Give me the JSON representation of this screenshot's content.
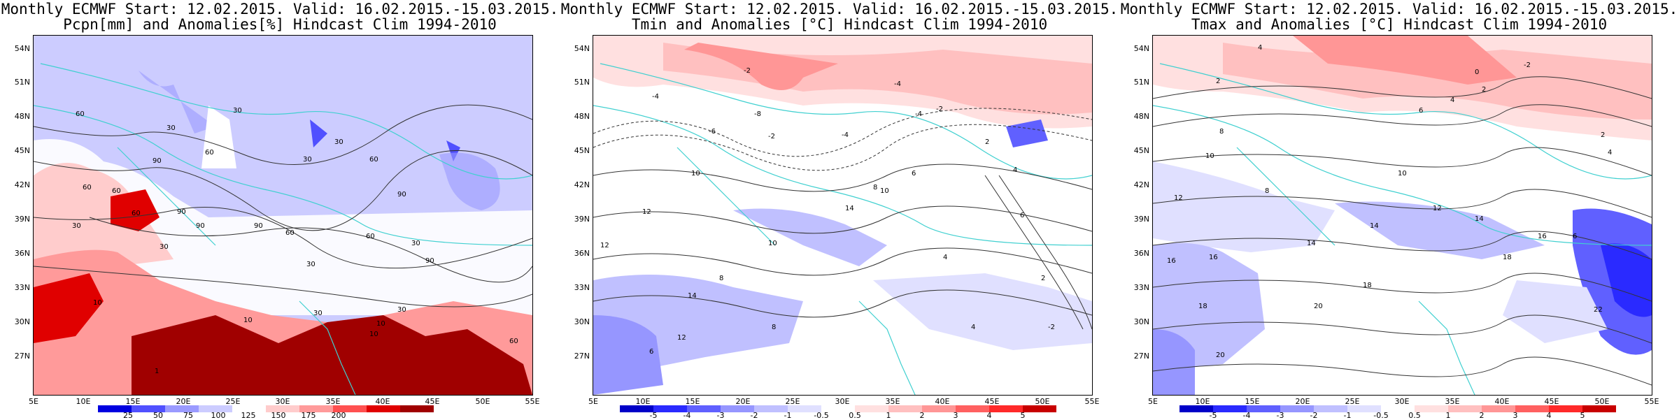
{
  "panels": [
    {
      "id": "pcpn",
      "title_line1": "Monthly ECMWF Start: 12.02.2015. Valid: 16.02.2015.-15.03.2015.",
      "title_line2": "Pcpn[mm] and Anomalies[%] Hindcast Clim 1994-2010",
      "colorbar": {
        "labels": [
          "25",
          "50",
          "75",
          "100",
          "125",
          "150",
          "175",
          "200"
        ],
        "colors": [
          "#0000e0",
          "#5050ff",
          "#9a9aff",
          "#ccccff",
          "#ffffff",
          "#ffcccc",
          "#ff9a9a",
          "#ff5050",
          "#e00000",
          "#a00000"
        ]
      },
      "contour_labels": [
        "60",
        "30",
        "60",
        "30",
        "90",
        "30",
        "60",
        "30",
        "60",
        "60",
        "90",
        "90",
        "30",
        "60",
        "90",
        "60",
        "90",
        "30",
        "60",
        "30",
        "90",
        "30",
        "30",
        "10",
        "10",
        "10",
        "30",
        "60",
        "10",
        "1"
      ]
    },
    {
      "id": "tmin",
      "title_line1": "Monthly ECMWF Start: 12.02.2015. Valid: 16.02.2015.-15.03.2015.",
      "title_line2": "Tmin and Anomalies [°C] Hindcast Clim 1994-2010",
      "colorbar": {
        "labels": [
          "-5",
          "-4",
          "-3",
          "-2",
          "-1",
          "-0.5",
          "0.5",
          "1",
          "2",
          "3",
          "4",
          "5"
        ],
        "colors": [
          "#0000c8",
          "#2a2aff",
          "#6060ff",
          "#9696ff",
          "#c0c0ff",
          "#e0e0ff",
          "#ffffff",
          "#ffe0e0",
          "#ffc0c0",
          "#ff9696",
          "#ff6060",
          "#ff2a2a",
          "#c80000"
        ]
      },
      "contour_labels": [
        "-2",
        "-4",
        "-8",
        "-6",
        "-4",
        "-2",
        "-4",
        "-2",
        "2",
        "4",
        "6",
        "8",
        "10",
        "12",
        "14",
        "12",
        "10",
        "8",
        "4",
        "6",
        "14",
        "12",
        "10",
        "8",
        "6",
        "4",
        "2",
        "-2",
        "-4"
      ]
    },
    {
      "id": "tmax",
      "title_line1": "Monthly ECMWF Start: 12.02.2015. Valid: 16.02.2015.-15.03.2015.",
      "title_line2": "Tmax and Anomalies [°C] Hindcast Clim 1994-2010",
      "colorbar": {
        "labels": [
          "-5",
          "-4",
          "-3",
          "-2",
          "-1",
          "-0.5",
          "0.5",
          "1",
          "2",
          "3",
          "4",
          "5"
        ],
        "colors": [
          "#0000c8",
          "#2a2aff",
          "#6060ff",
          "#9696ff",
          "#c0c0ff",
          "#e0e0ff",
          "#ffffff",
          "#ffe0e0",
          "#ffc0c0",
          "#ff9696",
          "#ff6060",
          "#ff2a2a",
          "#c80000"
        ]
      },
      "contour_labels": [
        "4",
        "2",
        "0",
        "-2",
        "2",
        "4",
        "6",
        "8",
        "10",
        "12",
        "14",
        "16",
        "18",
        "20",
        "22",
        "18",
        "16",
        "14",
        "12",
        "10",
        "8",
        "6",
        "4",
        "2",
        "20",
        "18",
        "16",
        "14"
      ]
    }
  ],
  "axes": {
    "lat_ticks": [
      "54N",
      "51N",
      "48N",
      "45N",
      "42N",
      "39N",
      "36N",
      "33N",
      "30N",
      "27N"
    ],
    "lon_ticks": [
      "5E",
      "10E",
      "15E",
      "20E",
      "25E",
      "30E",
      "35E",
      "40E",
      "45E",
      "50E",
      "55E"
    ]
  }
}
